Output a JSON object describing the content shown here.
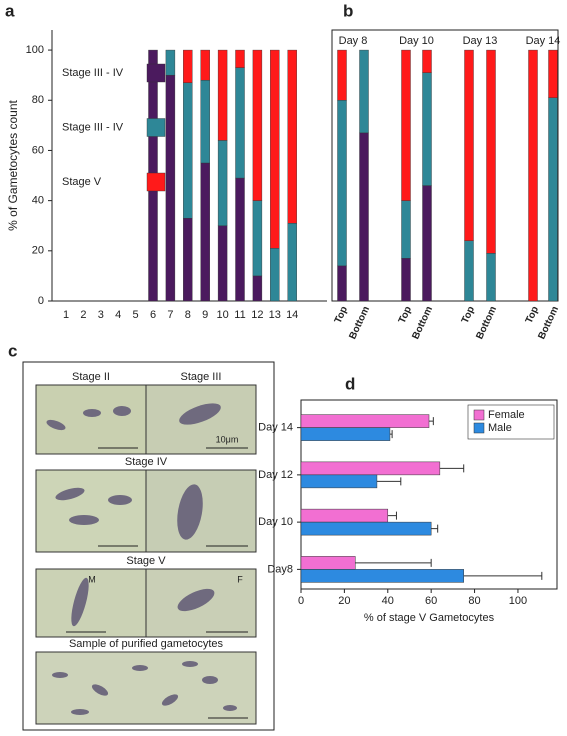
{
  "chart_data": [
    {
      "label": "a",
      "type": "stacked-bar",
      "ylabel": "% of Gametocytes count",
      "categories": [
        "1",
        "2",
        "3",
        "4",
        "5",
        "6",
        "7",
        "8",
        "9",
        "10",
        "11",
        "12",
        "13",
        "14"
      ],
      "series": [
        {
          "name": "Stage III - IV",
          "color": "#4b1a5e",
          "values": [
            0,
            0,
            0,
            0,
            0,
            100,
            90,
            33,
            55,
            30,
            49,
            10,
            0,
            0
          ]
        },
        {
          "name": "Stage III - IV",
          "color": "#2e8797",
          "values": [
            0,
            0,
            0,
            0,
            0,
            0,
            10,
            54,
            33,
            34,
            44,
            30,
            21,
            31
          ]
        },
        {
          "name": "Stage V",
          "color": "#ff1a1a",
          "values": [
            0,
            0,
            0,
            0,
            0,
            0,
            0,
            13,
            12,
            36,
            7,
            60,
            79,
            69
          ]
        }
      ],
      "ylim": [
        0,
        108
      ],
      "yticks": [
        0,
        20,
        40,
        60,
        80,
        100
      ]
    },
    {
      "label": "b",
      "type": "stacked-bar",
      "groups": [
        "Day 8",
        "Day 10",
        "Day 13",
        "Day 14"
      ],
      "categories": [
        "Top",
        "Bottom",
        "Top",
        "Bottom",
        "Top",
        "Bottom",
        "Top",
        "Bottom"
      ],
      "series": [
        {
          "color": "#4b1a5e",
          "values": [
            14,
            67,
            17,
            46,
            0,
            0,
            0,
            0
          ]
        },
        {
          "color": "#2e8797",
          "values": [
            66,
            33,
            23,
            45,
            24,
            19,
            0,
            81
          ]
        },
        {
          "color": "#ff1a1a",
          "values": [
            20,
            0,
            60,
            9,
            76,
            81,
            100,
            19
          ]
        }
      ],
      "ylim": [
        0,
        108
      ]
    },
    {
      "label": "d",
      "type": "hbar",
      "xlabel": "% of stage V Gametocytes",
      "categories": [
        "Day8",
        "Day 10",
        "Day 12",
        "Day 14"
      ],
      "series": [
        {
          "name": "Female",
          "color": "#f26fd2",
          "values": [
            25,
            40,
            64,
            59
          ],
          "errors": [
            35,
            4,
            11,
            2
          ]
        },
        {
          "name": "Male",
          "color": "#2d8ae0",
          "values": [
            75,
            60,
            35,
            41
          ],
          "errors": [
            36,
            3,
            11,
            1
          ]
        }
      ],
      "xlim": [
        0,
        118
      ],
      "xticks": [
        0,
        20,
        40,
        60,
        80,
        100
      ],
      "legend": "upper right"
    }
  ],
  "figure_c": {
    "label": "c",
    "captions": [
      "Stage II",
      "Stage III",
      "10μm",
      "Stage IV",
      "Stage V",
      "M",
      "F",
      "Sample of purified gametocytes"
    ]
  }
}
